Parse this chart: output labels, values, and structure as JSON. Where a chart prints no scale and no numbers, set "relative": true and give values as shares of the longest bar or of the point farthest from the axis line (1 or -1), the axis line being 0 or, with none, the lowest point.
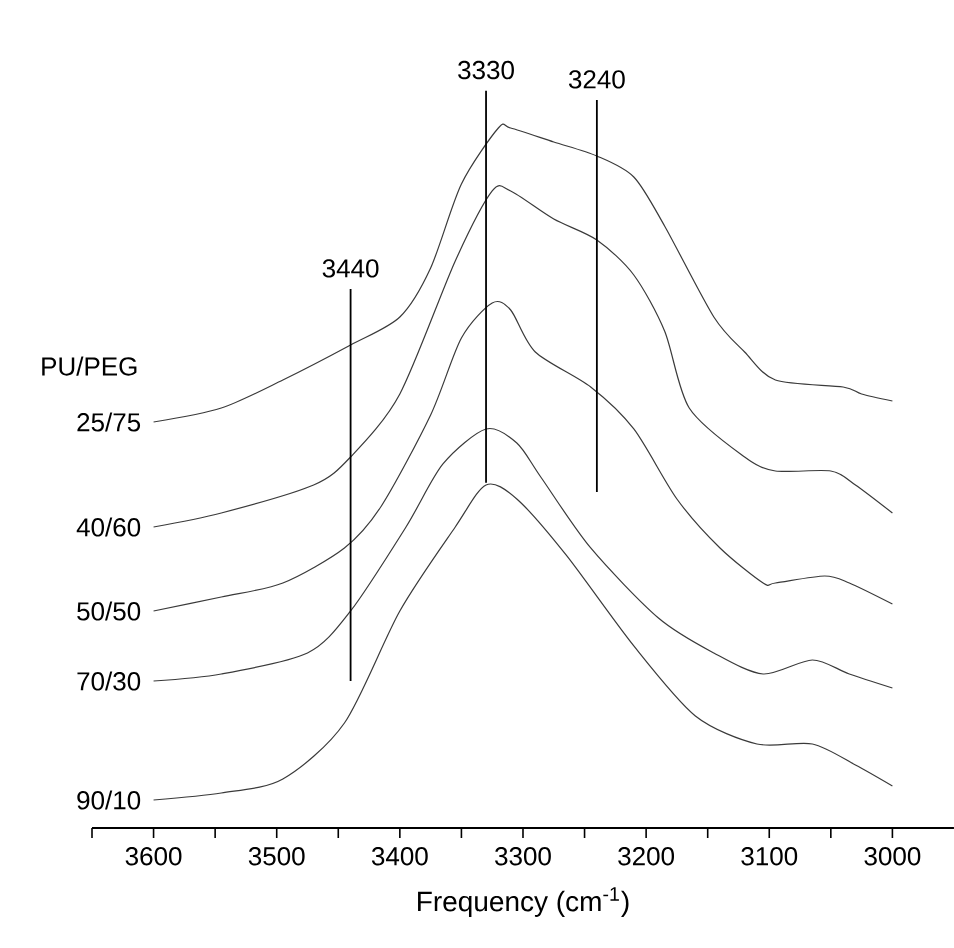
{
  "chart_data": {
    "type": "line",
    "relative": true,
    "xlabel": "Frequency (cm$^{-1}$)",
    "legend_title": "PU/PEG",
    "xlim": [
      3650,
      2950
    ],
    "xticks": [
      {
        "value": 3650,
        "label": null
      },
      3600,
      {
        "value": 3550,
        "label": null
      },
      3500,
      {
        "value": 3450,
        "label": null
      },
      3400,
      {
        "value": 3350,
        "label": null
      },
      3300,
      {
        "value": 3250,
        "label": null
      },
      3200,
      {
        "value": 3150,
        "label": null
      },
      3100,
      {
        "value": 3050,
        "label": null
      },
      3000
    ],
    "ref_lines": [
      {
        "axis": "x",
        "value": 3440,
        "label": "3440",
        "color": "#000000"
      },
      {
        "axis": "x",
        "value": 3330,
        "label": "3330",
        "color": "#000000"
      },
      {
        "axis": "x",
        "value": 3240,
        "label": "3240",
        "color": "#000000"
      }
    ],
    "series": [
      {
        "name": "25/75",
        "color": "#3a3a3a",
        "x": [
          3600,
          3545,
          3495,
          3440,
          3400,
          3375,
          3350,
          3320,
          3310,
          3275,
          3240,
          3210,
          3185,
          3145,
          3120,
          3095,
          3040,
          3025,
          3000
        ],
        "values": [
          0.58,
          0.6,
          0.64,
          0.69,
          0.73,
          0.8,
          0.92,
          1.0,
          1.0,
          0.98,
          0.96,
          0.93,
          0.86,
          0.73,
          0.68,
          0.64,
          0.63,
          0.62,
          0.61
        ]
      },
      {
        "name": "40/60",
        "color": "#3a3a3a",
        "x": [
          3600,
          3545,
          3470,
          3440,
          3400,
          3355,
          3325,
          3310,
          3275,
          3240,
          3210,
          3185,
          3165,
          3120,
          3095,
          3050,
          3030,
          3000
        ],
        "values": [
          0.43,
          0.45,
          0.49,
          0.53,
          0.62,
          0.81,
          0.91,
          0.91,
          0.87,
          0.84,
          0.79,
          0.71,
          0.6,
          0.53,
          0.51,
          0.51,
          0.49,
          0.45
        ]
      },
      {
        "name": "50/50",
        "color": "#3a3a3a",
        "x": [
          3600,
          3545,
          3495,
          3445,
          3415,
          3375,
          3350,
          3325,
          3310,
          3290,
          3245,
          3210,
          3175,
          3140,
          3105,
          3095,
          3055,
          3035,
          3000
        ],
        "values": [
          0.31,
          0.33,
          0.35,
          0.4,
          0.46,
          0.59,
          0.7,
          0.75,
          0.74,
          0.68,
          0.63,
          0.57,
          0.47,
          0.4,
          0.35,
          0.35,
          0.36,
          0.35,
          0.32
        ]
      },
      {
        "name": "70/30",
        "color": "#3a3a3a",
        "x": [
          3600,
          3545,
          3475,
          3440,
          3395,
          3365,
          3330,
          3305,
          3285,
          3245,
          3190,
          3145,
          3105,
          3065,
          3035,
          3000
        ],
        "values": [
          0.21,
          0.22,
          0.25,
          0.31,
          0.43,
          0.52,
          0.57,
          0.55,
          0.5,
          0.4,
          0.3,
          0.25,
          0.22,
          0.24,
          0.22,
          0.2
        ]
      },
      {
        "name": "90/10",
        "color": "#3a3a3a",
        "x": [
          3600,
          3545,
          3495,
          3445,
          3400,
          3355,
          3330,
          3305,
          3265,
          3210,
          3160,
          3110,
          3065,
          3030,
          3000
        ],
        "values": [
          0.04,
          0.05,
          0.07,
          0.15,
          0.31,
          0.43,
          0.49,
          0.47,
          0.39,
          0.26,
          0.16,
          0.12,
          0.12,
          0.09,
          0.06
        ]
      }
    ]
  }
}
